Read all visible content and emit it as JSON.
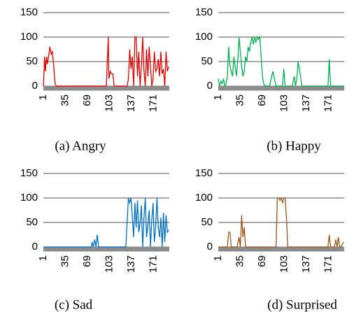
{
  "chart_data": [
    {
      "type": "line",
      "title": "(a) Angry",
      "color": "#e00000",
      "x": [
        1,
        3,
        4,
        6,
        7,
        9,
        11,
        13,
        15,
        17,
        19,
        21,
        40,
        80,
        98,
        101,
        102,
        104,
        106,
        108,
        110,
        125,
        130,
        132,
        134,
        136,
        138,
        140,
        142,
        144,
        146,
        148,
        150,
        152,
        154,
        156,
        158,
        160,
        162,
        164,
        166,
        168,
        170,
        172,
        174,
        176,
        178,
        180,
        182,
        184,
        186,
        188,
        190,
        192,
        194
      ],
      "values": [
        0,
        60,
        30,
        60,
        45,
        60,
        80,
        65,
        70,
        40,
        5,
        0,
        0,
        0,
        0,
        100,
        15,
        30,
        25,
        25,
        0,
        0,
        0,
        15,
        75,
        35,
        60,
        0,
        100,
        100,
        20,
        70,
        0,
        40,
        100,
        30,
        0,
        75,
        20,
        80,
        40,
        0,
        15,
        70,
        30,
        35,
        55,
        20,
        70,
        25,
        35,
        0,
        70,
        30,
        40
      ],
      "xlim": [
        1,
        195
      ],
      "ylim": [
        0,
        150
      ],
      "xticks": [
        1,
        35,
        69,
        103,
        137,
        171
      ],
      "yticks": [
        0,
        50,
        100,
        150
      ],
      "grid": true
    },
    {
      "type": "line",
      "title": "(b) Happy",
      "color": "#00b050",
      "x": [
        1,
        3,
        5,
        7,
        9,
        11,
        13,
        15,
        17,
        19,
        21,
        23,
        25,
        27,
        29,
        31,
        33,
        35,
        37,
        39,
        41,
        43,
        45,
        47,
        49,
        51,
        53,
        55,
        57,
        59,
        61,
        63,
        65,
        67,
        69,
        71,
        73,
        75,
        80,
        85,
        90,
        95,
        100,
        102,
        104,
        110,
        115,
        118,
        120,
        122,
        124,
        130,
        140,
        150,
        160,
        170,
        172,
        174,
        180,
        195
      ],
      "values": [
        15,
        0,
        10,
        5,
        15,
        0,
        5,
        20,
        80,
        40,
        30,
        20,
        60,
        40,
        20,
        50,
        100,
        70,
        40,
        20,
        30,
        60,
        50,
        80,
        70,
        90,
        100,
        85,
        100,
        90,
        100,
        95,
        100,
        60,
        20,
        5,
        0,
        0,
        0,
        30,
        0,
        0,
        0,
        35,
        0,
        0,
        0,
        20,
        0,
        15,
        50,
        0,
        0,
        0,
        0,
        0,
        55,
        0,
        0,
        0
      ],
      "xlim": [
        1,
        195
      ],
      "ylim": [
        0,
        150
      ],
      "xticks": [
        1,
        35,
        69,
        103,
        137,
        171
      ],
      "yticks": [
        0,
        50,
        100,
        150
      ],
      "grid": true
    },
    {
      "type": "line",
      "title": "(c) Sad",
      "color": "#0070c0",
      "x": [
        1,
        20,
        40,
        60,
        75,
        76,
        78,
        80,
        82,
        84,
        86,
        88,
        100,
        120,
        128,
        130,
        132,
        134,
        136,
        138,
        140,
        142,
        144,
        146,
        148,
        150,
        152,
        154,
        156,
        158,
        160,
        162,
        164,
        166,
        168,
        170,
        172,
        174,
        176,
        178,
        180,
        182,
        184,
        186,
        188,
        190,
        192,
        194
      ],
      "values": [
        0,
        0,
        0,
        0,
        0,
        10,
        0,
        15,
        0,
        25,
        0,
        0,
        0,
        0,
        0,
        50,
        100,
        90,
        100,
        60,
        20,
        90,
        40,
        95,
        30,
        50,
        85,
        0,
        60,
        100,
        20,
        45,
        75,
        0,
        55,
        90,
        10,
        40,
        100,
        40,
        20,
        60,
        0,
        70,
        10,
        65,
        30,
        35
      ],
      "xlim": [
        1,
        195
      ],
      "ylim": [
        0,
        150
      ],
      "xticks": [
        1,
        35,
        69,
        103,
        137,
        171
      ],
      "yticks": [
        0,
        50,
        100,
        150
      ],
      "grid": true
    },
    {
      "type": "line",
      "title": "(d) Surprised",
      "color": "#9c5518",
      "x": [
        1,
        15,
        17,
        19,
        21,
        23,
        30,
        33,
        35,
        37,
        39,
        41,
        43,
        45,
        60,
        85,
        90,
        92,
        94,
        96,
        98,
        100,
        102,
        104,
        106,
        108,
        110,
        112,
        114,
        116,
        118,
        120,
        130,
        160,
        170,
        172,
        174,
        176,
        180,
        182,
        184,
        186,
        188,
        190,
        194
      ],
      "values": [
        0,
        0,
        30,
        30,
        0,
        0,
        0,
        20,
        0,
        65,
        20,
        40,
        0,
        0,
        0,
        0,
        0,
        100,
        100,
        95,
        100,
        90,
        100,
        100,
        60,
        0,
        0,
        0,
        0,
        0,
        0,
        0,
        0,
        0,
        0,
        25,
        0,
        0,
        0,
        15,
        0,
        20,
        0,
        0,
        10
      ],
      "xlim": [
        1,
        195
      ],
      "ylim": [
        0,
        150
      ],
      "xticks": [
        1,
        35,
        69,
        103,
        137,
        171
      ],
      "yticks": [
        0,
        50,
        100,
        150
      ],
      "grid": true
    }
  ]
}
